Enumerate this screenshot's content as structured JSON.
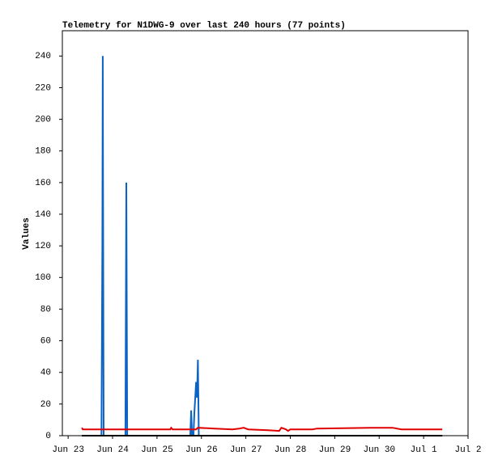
{
  "chart_data": {
    "type": "line",
    "title": "Telemetry for N1DWG-9 over last 240 hours (77 points)",
    "y_label": "Values",
    "xlim": [
      -0.13,
      9
    ],
    "xticks": [
      {
        "value": 0,
        "label": "Jun 23"
      },
      {
        "value": 1,
        "label": "Jun 24"
      },
      {
        "value": 2,
        "label": "Jun 25"
      },
      {
        "value": 3,
        "label": "Jun 26"
      },
      {
        "value": 4,
        "label": "Jun 27"
      },
      {
        "value": 5,
        "label": "Jun 28"
      },
      {
        "value": 6,
        "label": "Jun 29"
      },
      {
        "value": 7,
        "label": "Jun 30"
      },
      {
        "value": 8,
        "label": "Jul 1"
      },
      {
        "value": 9,
        "label": "Jul 2"
      }
    ],
    "ylim": [
      0,
      256
    ],
    "yticks": [
      0,
      20,
      40,
      60,
      80,
      100,
      120,
      140,
      160,
      180,
      200,
      220,
      240
    ],
    "series": [
      {
        "color": "#0b63c4",
        "x": [
          0.31,
          0.75,
          0.77,
          0.78,
          0.8,
          1.29,
          1.31,
          1.33,
          2.75,
          2.77,
          2.79,
          2.82,
          2.84,
          2.86,
          2.88,
          2.9,
          2.92,
          2.94,
          8.42
        ],
        "values": [
          0,
          0,
          120,
          240,
          0,
          0,
          160,
          0,
          0,
          16,
          0,
          0,
          14,
          24,
          34,
          24,
          48,
          0,
          0
        ]
      },
      {
        "color": "#e00000",
        "x": [
          0.31,
          0.33,
          2.3,
          2.32,
          2.35,
          2.88,
          2.92,
          3.3,
          3.7,
          3.85,
          3.95,
          4.05,
          4.5,
          4.75,
          4.8,
          4.9,
          4.95,
          5.0,
          5.5,
          5.6,
          6.8,
          7.3,
          7.5,
          8.42
        ],
        "values": [
          5,
          4,
          4,
          5,
          4,
          4,
          5,
          4.5,
          4,
          4.5,
          5,
          4,
          3.5,
          3,
          5,
          4,
          3,
          4,
          4,
          4.5,
          5,
          5,
          4,
          4
        ]
      },
      {
        "color": "#000000",
        "x": [
          0.31,
          8.42
        ],
        "values": [
          0,
          0
        ]
      }
    ]
  }
}
